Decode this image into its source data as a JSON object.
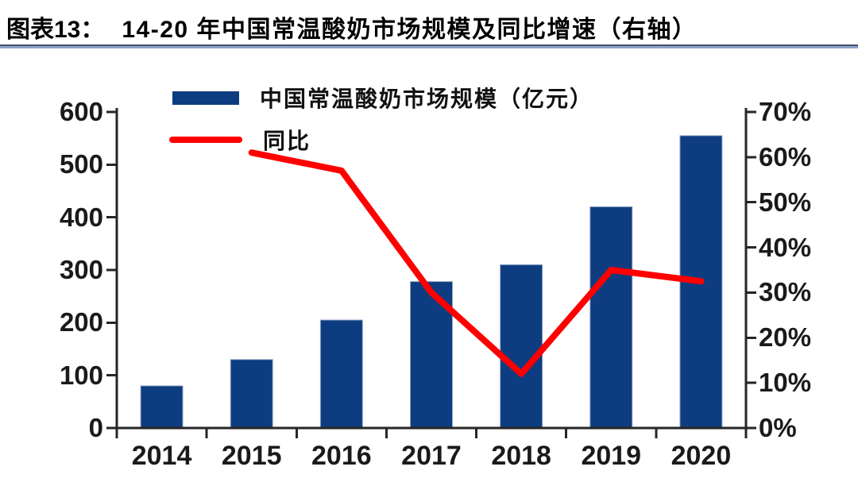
{
  "header": {
    "label": "图表13：",
    "title": "14-20 年中国常温酸奶市场规模及同比增速（右轴）"
  },
  "chart_data": {
    "type": "bar",
    "subtype": "bar-line-combo",
    "title": "14-20 年中国常温酸奶市场规模及同比增速（右轴）",
    "categories": [
      "2014",
      "2015",
      "2016",
      "2017",
      "2018",
      "2019",
      "2020"
    ],
    "series": [
      {
        "name": "中国常温酸奶市场规模（亿元）",
        "type": "bar",
        "axis": "left",
        "color": "#0d3d80",
        "values": [
          80,
          130,
          205,
          278,
          310,
          420,
          555
        ]
      },
      {
        "name": "同比",
        "type": "line",
        "axis": "right",
        "color": "#ff0000",
        "unit": "%",
        "values": [
          null,
          61,
          57,
          30,
          12,
          35,
          32.5
        ]
      }
    ],
    "left_axis": {
      "min": 0,
      "max": 600,
      "step": 100,
      "tick_labels": [
        "600",
        "500",
        "400",
        "300",
        "200",
        "100",
        "0"
      ]
    },
    "right_axis": {
      "min": 0,
      "max": 70,
      "step": 10,
      "tick_labels": [
        "70%",
        "60%",
        "50%",
        "40%",
        "30%",
        "20%",
        "10%",
        "0%"
      ]
    },
    "grid": false,
    "legend_position": "top-left",
    "colors": {
      "bar": "#0d3d80",
      "line": "#ff0000",
      "axis": "#262626",
      "rule_dark": "#46536e",
      "rule_light": "#8ba3c7"
    }
  }
}
